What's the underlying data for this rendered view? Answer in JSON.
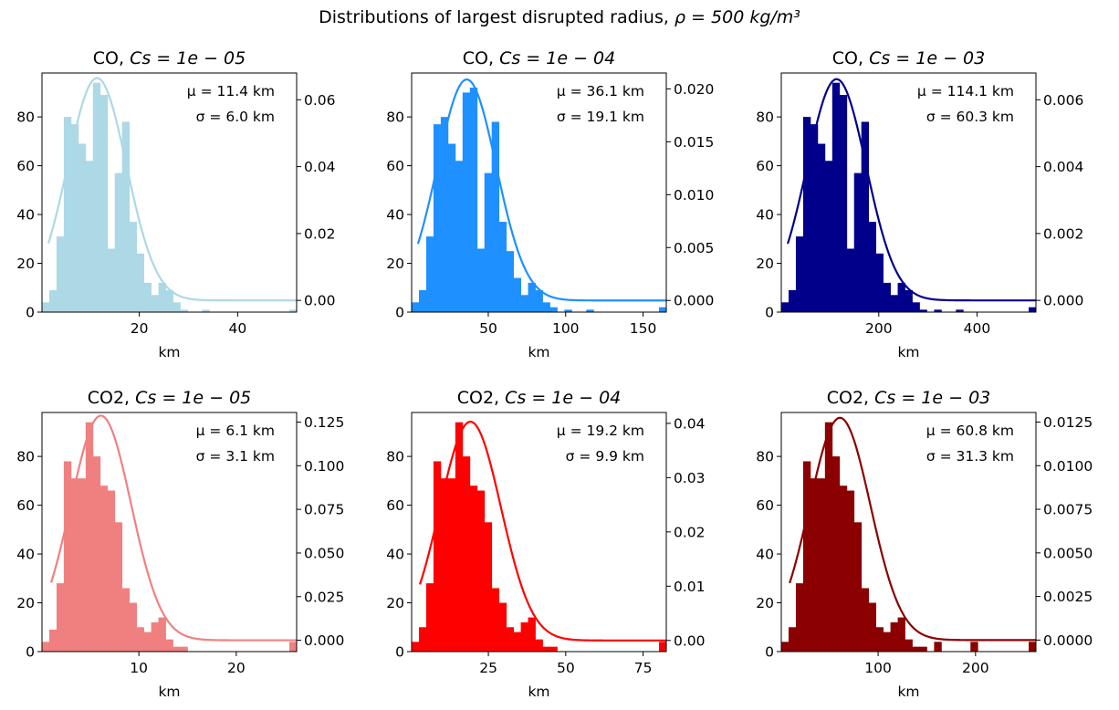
{
  "figure": {
    "suptitle_prefix": "Distributions of largest disrupted radius, ",
    "suptitle_math": "ρ = 500 kg/m³"
  },
  "chart_data": [
    {
      "type": "bar",
      "title_prefix": "CO, ",
      "title_math": "Cs = 1e − 05",
      "xlabel": "km",
      "xlim": [
        0.2,
        52
      ],
      "ylim": [
        0,
        98
      ],
      "y2lim": [
        -0.0035,
        0.068
      ],
      "xticks": [
        20,
        40
      ],
      "yticks": [
        0,
        20,
        40,
        60,
        80
      ],
      "y2ticks": [
        0.0,
        0.02,
        0.04,
        0.06
      ],
      "y2tick_labels": [
        "0.00",
        "0.02",
        "0.04",
        "0.06"
      ],
      "color": "#add8e6",
      "mu": 11.4,
      "sigma": 6.0,
      "mu_label": "μ = 11.4 km",
      "sigma_label": "σ = 6.0 km",
      "bin_range": [
        0.2,
        52
      ],
      "counts": [
        4,
        9,
        31,
        80,
        77,
        69,
        62,
        94,
        89,
        26,
        57,
        78,
        37,
        24,
        12,
        7,
        12,
        9,
        4,
        1,
        0,
        0,
        1,
        0,
        0,
        0,
        0,
        0,
        0,
        0,
        0,
        0,
        0,
        0,
        1
      ]
    },
    {
      "type": "bar",
      "title_prefix": "CO, ",
      "title_math": "Cs = 1e − 04",
      "xlabel": "km",
      "xlim": [
        0.5,
        165
      ],
      "ylim": [
        0,
        98
      ],
      "y2lim": [
        -0.0011,
        0.0215
      ],
      "xticks": [
        50,
        100,
        150
      ],
      "yticks": [
        0,
        20,
        40,
        60,
        80
      ],
      "y2ticks": [
        0.0,
        0.005,
        0.01,
        0.015,
        0.02
      ],
      "y2tick_labels": [
        "0.000",
        "0.005",
        "0.010",
        "0.015",
        "0.020"
      ],
      "color": "#1e90ff",
      "mu": 36.1,
      "sigma": 19.1,
      "mu_label": "μ = 36.1 km",
      "sigma_label": "σ = 19.1 km",
      "bin_range": [
        0.5,
        165
      ],
      "counts": [
        4,
        9,
        31,
        77,
        80,
        69,
        62,
        90,
        92,
        26,
        57,
        78,
        37,
        25,
        14,
        7,
        12,
        9,
        4,
        2,
        0,
        1,
        0,
        0,
        1,
        0,
        0,
        0,
        0,
        0,
        0,
        0,
        0,
        0,
        2
      ]
    },
    {
      "type": "bar",
      "title_prefix": "CO, ",
      "title_math": "Cs = 1e − 03",
      "xlabel": "km",
      "xlim": [
        1.5,
        520
      ],
      "ylim": [
        0,
        98
      ],
      "y2lim": [
        -0.00035,
        0.0068
      ],
      "xticks": [
        200,
        400
      ],
      "yticks": [
        0,
        20,
        40,
        60,
        80
      ],
      "y2ticks": [
        0.0,
        0.002,
        0.004,
        0.006
      ],
      "y2tick_labels": [
        "0.000",
        "0.002",
        "0.004",
        "0.006"
      ],
      "color": "#00008b",
      "mu": 114.1,
      "sigma": 60.3,
      "mu_label": "μ = 114.1 km",
      "sigma_label": "σ = 60.3 km",
      "bin_range": [
        1.5,
        520
      ],
      "counts": [
        4,
        9,
        31,
        80,
        77,
        69,
        62,
        94,
        89,
        26,
        57,
        78,
        37,
        24,
        12,
        7,
        12,
        9,
        4,
        1,
        0,
        1,
        0,
        0,
        1,
        0,
        0,
        0,
        0,
        0,
        0,
        0,
        0,
        0,
        2
      ]
    },
    {
      "type": "bar",
      "title_prefix": "CO2, ",
      "title_math": "Cs = 1e − 05",
      "xlabel": "km",
      "xlim": [
        0.05,
        26.2
      ],
      "ylim": [
        0,
        98
      ],
      "y2lim": [
        -0.0065,
        0.1305
      ],
      "xticks": [
        10,
        20
      ],
      "yticks": [
        0,
        20,
        40,
        60,
        80
      ],
      "y2ticks": [
        0.0,
        0.025,
        0.05,
        0.075,
        0.1,
        0.125
      ],
      "y2tick_labels": [
        "0.000",
        "0.025",
        "0.050",
        "0.075",
        "0.100",
        "0.125"
      ],
      "color": "#f08080",
      "mu": 6.1,
      "sigma": 3.1,
      "mu_label": "μ = 6.1 km",
      "sigma_label": "σ = 3.1 km",
      "bin_range": [
        0.05,
        26.2
      ],
      "counts": [
        4,
        9,
        28,
        78,
        71,
        71,
        94,
        80,
        68,
        66,
        53,
        26,
        20,
        10,
        8,
        12,
        14,
        5,
        2,
        2,
        0,
        0,
        0,
        0,
        0,
        0,
        0,
        0,
        0,
        0,
        0,
        0,
        0,
        0,
        4
      ]
    },
    {
      "type": "bar",
      "title_prefix": "CO2, ",
      "title_math": "Cs = 1e − 04",
      "xlabel": "km",
      "xlim": [
        0.2,
        82.5
      ],
      "ylim": [
        0,
        98
      ],
      "y2lim": [
        -0.00205,
        0.042
      ],
      "xticks": [
        25,
        50,
        75
      ],
      "yticks": [
        0,
        20,
        40,
        60,
        80
      ],
      "y2ticks": [
        0.0,
        0.01,
        0.02,
        0.03,
        0.04
      ],
      "y2tick_labels": [
        "0.00",
        "0.01",
        "0.02",
        "0.03",
        "0.04"
      ],
      "color": "#ff0000",
      "mu": 19.2,
      "sigma": 9.9,
      "mu_label": "μ = 19.2 km",
      "sigma_label": "σ = 9.9 km",
      "bin_range": [
        0.2,
        82.5
      ],
      "counts": [
        4,
        10,
        28,
        78,
        71,
        71,
        94,
        80,
        68,
        66,
        53,
        26,
        20,
        10,
        8,
        12,
        14,
        5,
        2,
        2,
        0,
        0,
        0,
        0,
        0,
        0,
        0,
        0,
        0,
        0,
        0,
        0,
        0,
        0,
        4
      ]
    },
    {
      "type": "bar",
      "title_prefix": "CO2, ",
      "title_math": "Cs = 1e − 03",
      "xlabel": "km",
      "xlim": [
        0.6,
        262
      ],
      "ylim": [
        0,
        98
      ],
      "y2lim": [
        -0.00066,
        0.01305
      ],
      "xticks": [
        100,
        200
      ],
      "yticks": [
        0,
        20,
        40,
        60,
        80
      ],
      "y2ticks": [
        0.0,
        0.0025,
        0.005,
        0.0075,
        0.01,
        0.0125
      ],
      "y2tick_labels": [
        "0.0000",
        "0.0025",
        "0.0050",
        "0.0075",
        "0.0100",
        "0.0125"
      ],
      "color": "#8b0000",
      "mu": 60.8,
      "sigma": 31.3,
      "mu_label": "μ = 60.8 km",
      "sigma_label": "σ = 31.3 km",
      "bin_range": [
        0.6,
        262
      ],
      "counts": [
        4,
        10,
        28,
        78,
        71,
        71,
        94,
        80,
        68,
        66,
        53,
        26,
        20,
        10,
        8,
        12,
        14,
        5,
        2,
        2,
        0,
        4,
        0,
        0,
        0,
        0,
        4,
        0,
        0,
        0,
        0,
        0,
        0,
        0,
        4
      ]
    }
  ]
}
